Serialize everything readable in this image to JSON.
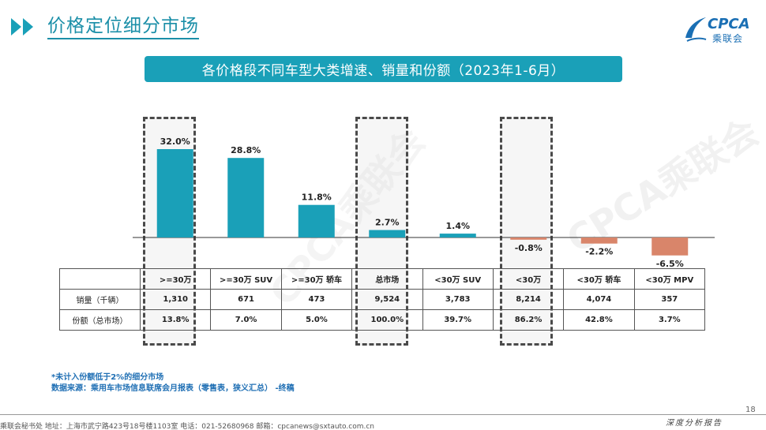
{
  "header": {
    "title": "价格定位细分市场"
  },
  "logo": {
    "text": "CPCA",
    "sub": "乘联会"
  },
  "banner": {
    "title": "各价格段不同车型大类增速、销量和份额（2023年1-6月）"
  },
  "watermark": "CPCA乘联会",
  "colors": {
    "accent": "#1aa0b8",
    "positive_bar": "#1aa0b8",
    "negative_bar": "#d9856a"
  },
  "chart_data": {
    "type": "bar",
    "title": "各价格段不同车型大类增速、销量和份额（2023年1-6月）",
    "categories": [
      ">=30万",
      ">=30万 SUV",
      ">=30万 轿车",
      "总市场",
      "<30万 SUV",
      "<30万",
      "<30万 轿车",
      "<30万 MPV"
    ],
    "values": [
      32.0,
      28.8,
      11.8,
      2.7,
      1.4,
      -0.8,
      -2.2,
      -6.5
    ],
    "value_labels": [
      "32.0%",
      "28.8%",
      "11.8%",
      "2.7%",
      "1.4%",
      "-0.8%",
      "-2.2%",
      "-6.5%"
    ],
    "unit": "%",
    "highlighted": [
      ">=30万",
      "总市场",
      "<30万"
    ],
    "ylim": [
      -8,
      35
    ],
    "grid": false,
    "legend": "none"
  },
  "table": {
    "rows": [
      {
        "label": "销量（千辆）",
        "values": [
          "1,310",
          "671",
          "473",
          "9,524",
          "3,783",
          "8,214",
          "4,074",
          "357"
        ]
      },
      {
        "label": "份额（总市场）",
        "values": [
          "13.8%",
          "7.0%",
          "5.0%",
          "100.0%",
          "39.7%",
          "86.2%",
          "42.8%",
          "3.7%"
        ]
      }
    ]
  },
  "footnote": {
    "line1": "*未计入份额低于2%的细分市场",
    "line2": "数据来源：乘用车市场信息联席会月报表（零售表，狭义汇总） -终稿"
  },
  "footer": {
    "address": "乘联会秘书处   地址：上海市武宁路423号18号楼1103室   电话：021-52680968   邮箱：cpcanews@sxtauto.com.cn",
    "label": "深度分析报告",
    "page": "18"
  }
}
